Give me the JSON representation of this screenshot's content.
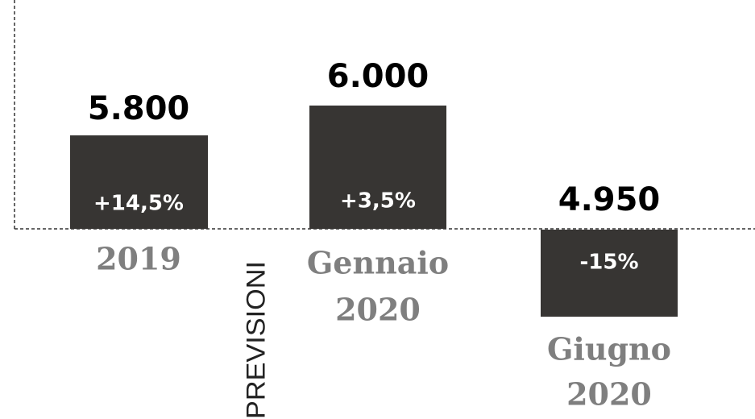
{
  "side_label": "PREVISIONI",
  "items": [
    {
      "value": "5.800",
      "change": "+14,5%",
      "label": [
        "2019"
      ]
    },
    {
      "value": "6.000",
      "change": "+3,5%",
      "label": [
        "Gennaio",
        "2020"
      ]
    },
    {
      "value": "4.950",
      "change": "-15%",
      "label": [
        "Giugno",
        "2020"
      ]
    }
  ]
}
